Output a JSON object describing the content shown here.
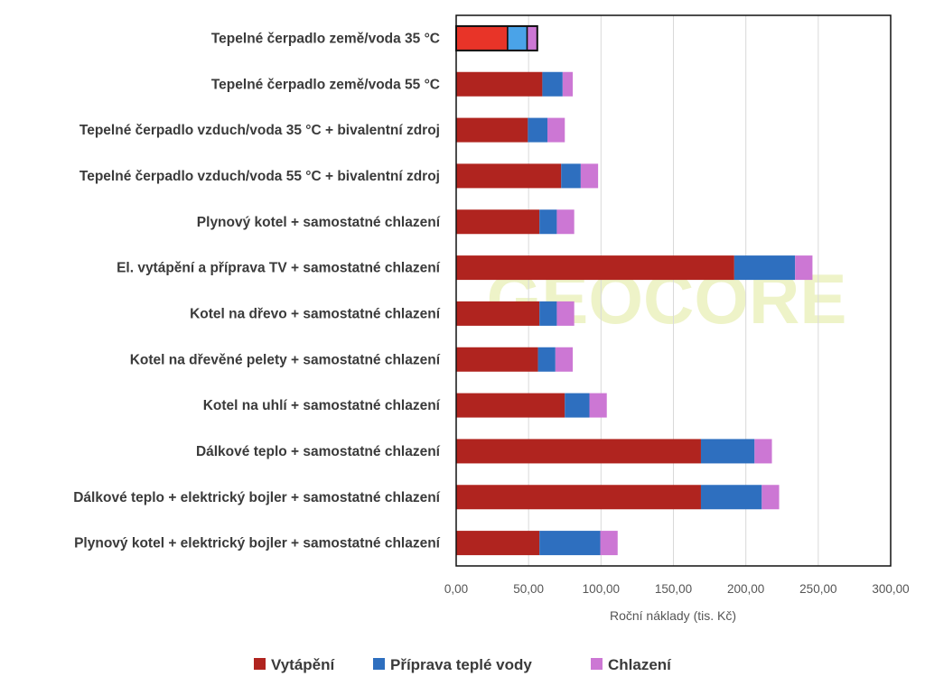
{
  "chart_data": {
    "type": "bar",
    "orientation": "horizontal",
    "stacked": true,
    "xlabel": "Roční náklady (tis. Kč)",
    "xlim": [
      0,
      300
    ],
    "xticks": [
      0,
      50,
      100,
      150,
      200,
      250,
      300
    ],
    "xtick_labels": [
      "0,00",
      "50,00",
      "100,00",
      "150,00",
      "200,00",
      "250,00",
      "300,00"
    ],
    "grid": "vertical",
    "legend_position": "bottom",
    "watermark": "GEOCORE",
    "highlighted_category_index": 0,
    "categories": [
      "Tepelné čerpadlo země/voda 35 °C",
      "Tepelné čerpadlo země/voda 55 °C",
      "Tepelné čerpadlo vzduch/voda 35 °C + bivalentní zdroj",
      "Tepelné čerpadlo vzduch/voda 55 °C + bivalentní zdroj",
      "Plynový kotel + samostatné chlazení",
      "El. vytápění a příprava TV + samostatné chlazení",
      "Kotel na dřevo + samostatné chlazení",
      "Kotel na dřevěné pelety + samostatné chlazení",
      "Kotel na uhlí + samostatné chlazení",
      "Dálkové teplo + samostatné chlazení",
      "Dálkové teplo + elektrický bojler + samostatné chlazení",
      "Plynový kotel + elektrický bojler + samostatné chlazení"
    ],
    "series": [
      {
        "name": "Vytápění",
        "color": "#b0241f",
        "highlight_color": "#e83428",
        "values": [
          35.5,
          59.5,
          49.5,
          72.5,
          57.5,
          192,
          57.5,
          56.5,
          75,
          169,
          169,
          57.5
        ]
      },
      {
        "name": "Příprava teplé vody",
        "color": "#2e6fbf",
        "highlight_color": "#4aa3e8",
        "values": [
          13.5,
          14,
          13.5,
          13.5,
          12,
          42,
          12,
          12,
          17,
          37,
          42,
          42
        ]
      },
      {
        "name": "Chlazení",
        "color": "#cc77d4",
        "highlight_color": "#cc77d4",
        "values": [
          7,
          7,
          12,
          12,
          12,
          12,
          12,
          12,
          12,
          12,
          12,
          12
        ]
      }
    ]
  }
}
